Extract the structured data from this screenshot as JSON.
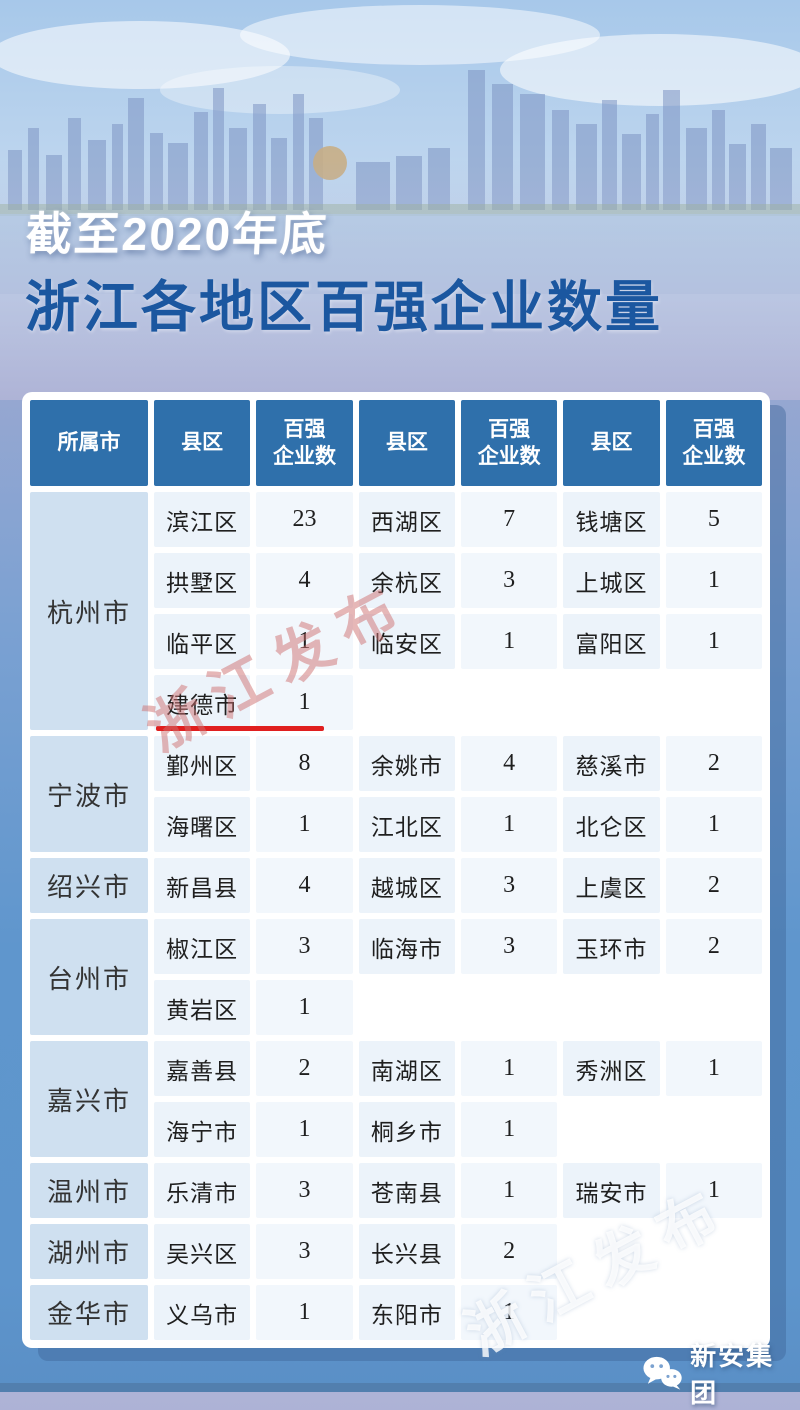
{
  "header": {
    "tagline": "截至2020年底",
    "title": "浙江各地区百强企业数量"
  },
  "table": {
    "columns": [
      "所属市",
      "县区",
      "百强\n企业数",
      "县区",
      "百强\n企业数",
      "县区",
      "百强\n企业数"
    ],
    "groups": [
      {
        "city": "杭州市",
        "rows": [
          [
            {
              "name": "滨江区",
              "value": "23"
            },
            {
              "name": "西湖区",
              "value": "7"
            },
            {
              "name": "钱塘区",
              "value": "5"
            }
          ],
          [
            {
              "name": "拱墅区",
              "value": "4"
            },
            {
              "name": "余杭区",
              "value": "3"
            },
            {
              "name": "上城区",
              "value": "1"
            }
          ],
          [
            {
              "name": "临平区",
              "value": "1"
            },
            {
              "name": "临安区",
              "value": "1"
            },
            {
              "name": "富阳区",
              "value": "1"
            }
          ],
          [
            {
              "name": "建德市",
              "value": "1",
              "underline": true
            },
            null,
            null
          ]
        ]
      },
      {
        "city": "宁波市",
        "rows": [
          [
            {
              "name": "鄞州区",
              "value": "8"
            },
            {
              "name": "余姚市",
              "value": "4"
            },
            {
              "name": "慈溪市",
              "value": "2"
            }
          ],
          [
            {
              "name": "海曙区",
              "value": "1"
            },
            {
              "name": "江北区",
              "value": "1"
            },
            {
              "name": "北仑区",
              "value": "1"
            }
          ]
        ]
      },
      {
        "city": "绍兴市",
        "rows": [
          [
            {
              "name": "新昌县",
              "value": "4"
            },
            {
              "name": "越城区",
              "value": "3"
            },
            {
              "name": "上虞区",
              "value": "2"
            }
          ]
        ]
      },
      {
        "city": "台州市",
        "rows": [
          [
            {
              "name": "椒江区",
              "value": "3"
            },
            {
              "name": "临海市",
              "value": "3"
            },
            {
              "name": "玉环市",
              "value": "2"
            }
          ],
          [
            {
              "name": "黄岩区",
              "value": "1"
            },
            null,
            null
          ]
        ]
      },
      {
        "city": "嘉兴市",
        "rows": [
          [
            {
              "name": "嘉善县",
              "value": "2"
            },
            {
              "name": "南湖区",
              "value": "1"
            },
            {
              "name": "秀洲区",
              "value": "1"
            }
          ],
          [
            {
              "name": "海宁市",
              "value": "1"
            },
            {
              "name": "桐乡市",
              "value": "1"
            },
            null
          ]
        ]
      },
      {
        "city": "温州市",
        "rows": [
          [
            {
              "name": "乐清市",
              "value": "3"
            },
            {
              "name": "苍南县",
              "value": "1"
            },
            {
              "name": "瑞安市",
              "value": "1"
            }
          ]
        ]
      },
      {
        "city": "湖州市",
        "rows": [
          [
            {
              "name": "吴兴区",
              "value": "3"
            },
            {
              "name": "长兴县",
              "value": "2"
            },
            null
          ]
        ]
      },
      {
        "city": "金华市",
        "rows": [
          [
            {
              "name": "义乌市",
              "value": "1"
            },
            {
              "name": "东阳市",
              "value": "1"
            },
            null
          ]
        ]
      }
    ]
  },
  "watermark": {
    "text": "浙江发布"
  },
  "footer": {
    "brand": "新安集团"
  },
  "colors": {
    "header_cell_blue": "#2f70ab",
    "city_cell_blue": "#cfe0f0",
    "data_cell_blue": "#ecf3fa",
    "title_blue": "#1b57a0",
    "underline_red": "#e01f1f",
    "background_blue": "#5f96cd"
  }
}
